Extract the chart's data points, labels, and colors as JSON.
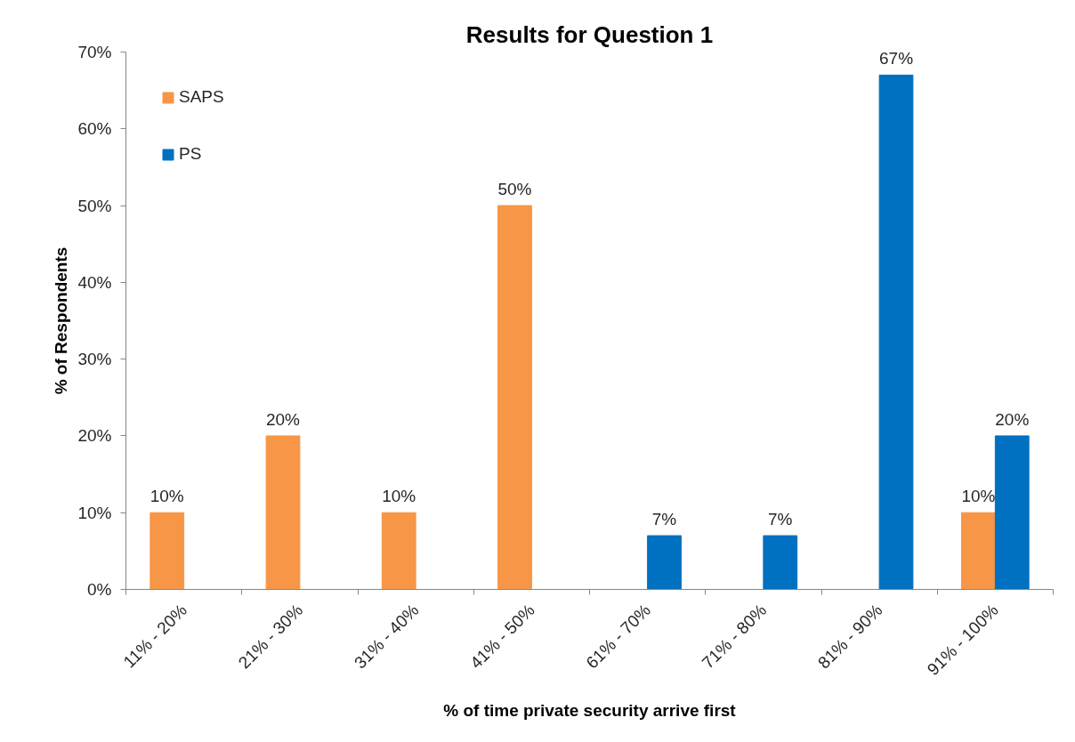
{
  "chart_data": {
    "type": "bar",
    "title": "Results for Question 1",
    "xlabel": "% of time private security arrive first",
    "ylabel": "% of Respondents",
    "categories": [
      "11% - 20%",
      "21% - 30%",
      "31% - 40%",
      "41% - 50%",
      "61% - 70%",
      "71% - 80%",
      "81% - 90%",
      "91% - 100%"
    ],
    "series": [
      {
        "name": "SAPS",
        "color": "#f79646",
        "values": [
          10,
          20,
          10,
          50,
          null,
          null,
          null,
          10
        ],
        "value_labels": [
          "10%",
          "20%",
          "10%",
          "50%",
          null,
          null,
          null,
          "10%"
        ]
      },
      {
        "name": "PS",
        "color": "#0070c0",
        "values": [
          null,
          null,
          null,
          null,
          7,
          7,
          67,
          20
        ],
        "value_labels": [
          null,
          null,
          null,
          null,
          "7%",
          "7%",
          "67%",
          "20%"
        ]
      }
    ],
    "ylim": [
      0,
      70
    ],
    "yticks": [
      {
        "value": 0,
        "label": "0%"
      },
      {
        "value": 10,
        "label": "10%"
      },
      {
        "value": 20,
        "label": "20%"
      },
      {
        "value": 30,
        "label": "30%"
      },
      {
        "value": 40,
        "label": "40%"
      },
      {
        "value": 50,
        "label": "50%"
      },
      {
        "value": 60,
        "label": "60%"
      },
      {
        "value": 70,
        "label": "70%"
      }
    ],
    "grid": false,
    "legend": "top left"
  }
}
